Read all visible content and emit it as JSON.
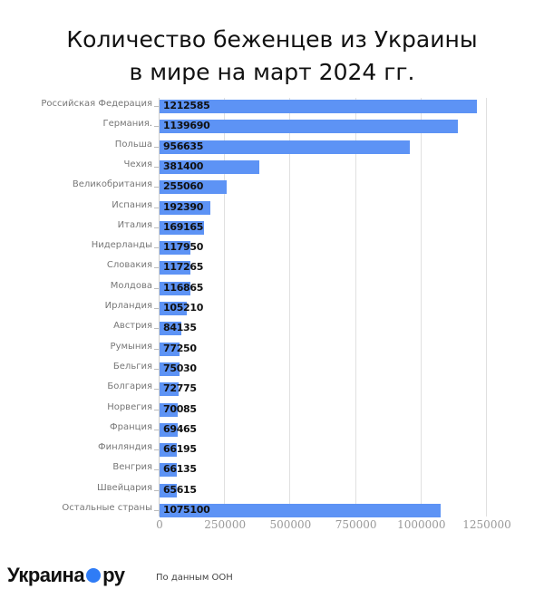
{
  "title_line1": "Количество беженцев из Украины",
  "title_line2": "в мире на март 2024 гг.",
  "footer": {
    "logo_left": "Украина",
    "logo_right": "ру",
    "source": "По данным ООН"
  },
  "colors": {
    "bar": "#5d93f5",
    "logo_dot": "#2f7cf6"
  },
  "chart_data": {
    "type": "bar",
    "orientation": "horizontal",
    "title": "Количество беженцев из Украины в мире на март 2024 гг.",
    "xlabel": "",
    "ylabel": "",
    "xlim": [
      0,
      1250000
    ],
    "xticks": [
      "0",
      "250000",
      "500000",
      "750000",
      "1000000",
      "1250000"
    ],
    "grid": true,
    "legend": "none",
    "categories": [
      "Российская Федерация",
      "Германия.",
      "Польша",
      "Чехия",
      "Великобритания",
      "Испания",
      "Италия",
      "Нидерланды",
      "Словакия",
      "Молдова",
      "Ирландия",
      "Австрия",
      "Румыния",
      "Бельгия",
      "Болгария",
      "Норвегия",
      "Франция",
      "Финляндия",
      "Венгрия",
      "Швейцария",
      "Остальные страны"
    ],
    "values": [
      1212585,
      1139690,
      956635,
      381400,
      255060,
      192390,
      169165,
      117950,
      117265,
      116865,
      105210,
      84135,
      77250,
      75030,
      72775,
      70085,
      69465,
      66195,
      66135,
      65615,
      1075100
    ],
    "labels": [
      "1212585",
      "1139690",
      "956635",
      "381400",
      "255060",
      "192390",
      "169165",
      "117950",
      "117265",
      "116865",
      "105210",
      "84135",
      "77250",
      "75030",
      "72775",
      "70085",
      "69465",
      "66195",
      "66135",
      "65615",
      "1075100"
    ]
  }
}
